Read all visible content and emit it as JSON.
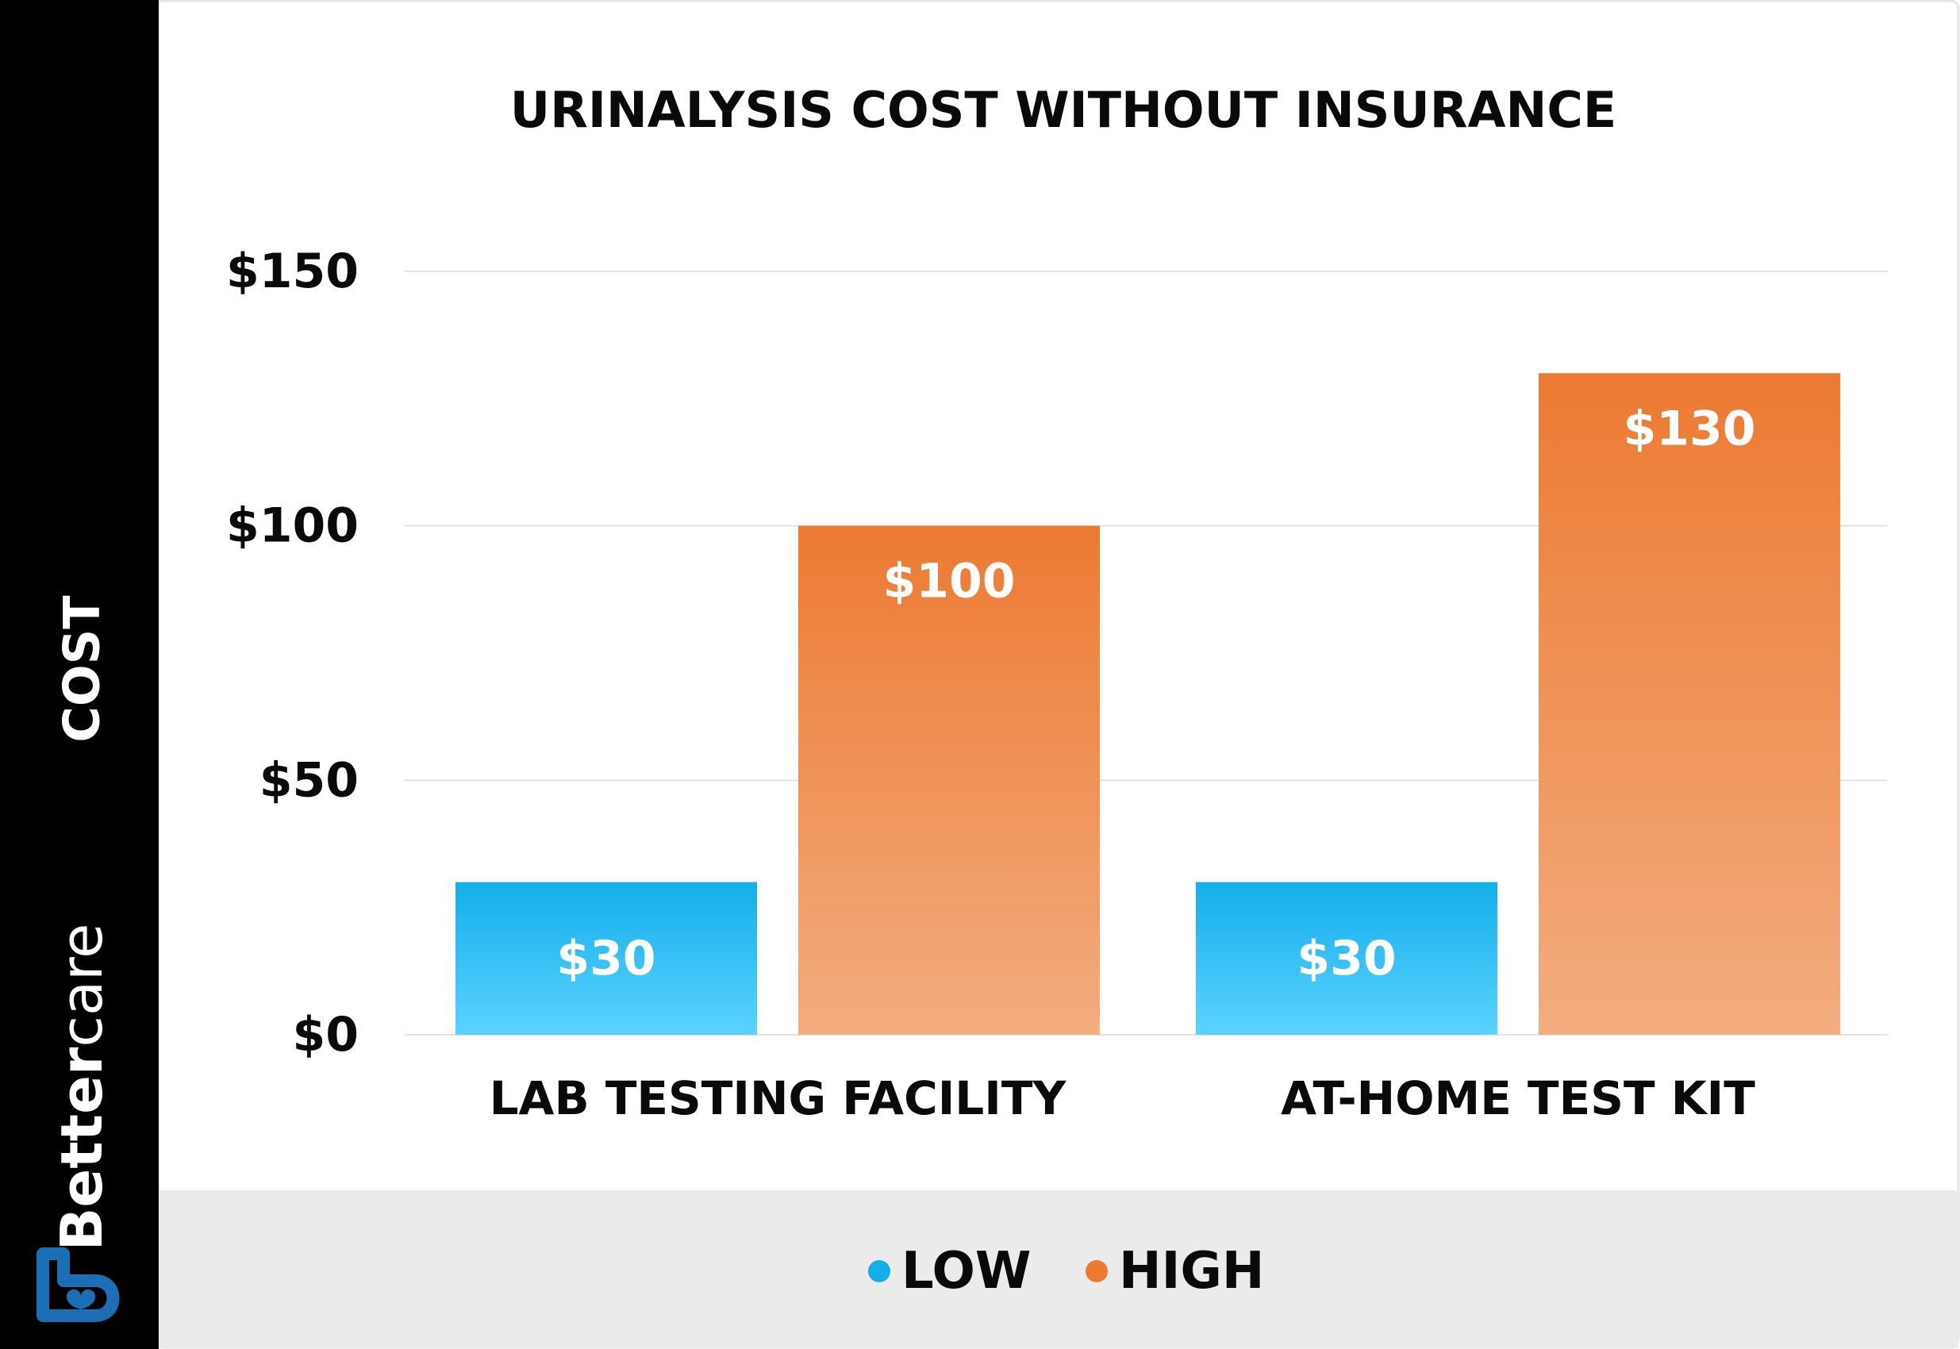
{
  "brand": {
    "name_bold": "Better",
    "name_light": "care",
    "colors": {
      "mark": "#1a6fb5",
      "sidebar": "#000000",
      "text": "#ffffff"
    }
  },
  "colors": {
    "low_top": "#14aeea",
    "low_bottom": "#5ad3ff",
    "high_top": "#ec7a32",
    "high_bottom": "#f3ad7f",
    "gridline": "#e2e2e2",
    "legend_band": "#ebebeb",
    "frame": "#e6e6e6"
  },
  "chart_data": {
    "type": "bar",
    "title": "URINALYSIS COST WITHOUT INSURANCE",
    "xlabel": "",
    "ylabel": "COST",
    "categories": [
      "LAB TESTING FACILITY",
      "AT-HOME TEST KIT"
    ],
    "series": [
      {
        "name": "LOW",
        "values": [
          30,
          30
        ],
        "labels": [
          "$30",
          "$30"
        ],
        "color": "#14aeea"
      },
      {
        "name": "HIGH",
        "values": [
          100,
          130
        ],
        "labels": [
          "$100",
          "$130"
        ],
        "color": "#ec7a32"
      }
    ],
    "ylim": [
      0,
      150
    ],
    "yticks": [
      0,
      50,
      100,
      150
    ],
    "ytick_labels": [
      "$0",
      "$50",
      "$100",
      "$150"
    ],
    "grid": true,
    "legend_position": "bottom"
  }
}
